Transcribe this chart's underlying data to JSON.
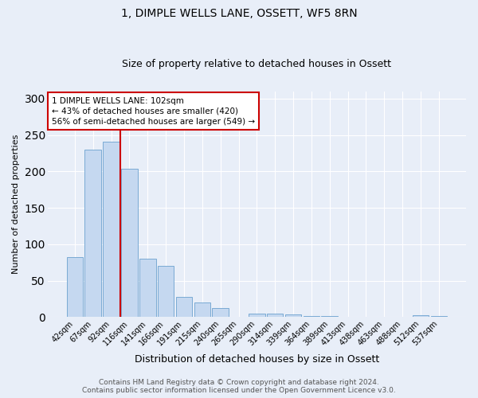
{
  "title1": "1, DIMPLE WELLS LANE, OSSETT, WF5 8RN",
  "title2": "Size of property relative to detached houses in Ossett",
  "xlabel": "Distribution of detached houses by size in Ossett",
  "ylabel": "Number of detached properties",
  "categories": [
    "42sqm",
    "67sqm",
    "92sqm",
    "116sqm",
    "141sqm",
    "166sqm",
    "191sqm",
    "215sqm",
    "240sqm",
    "265sqm",
    "290sqm",
    "314sqm",
    "339sqm",
    "364sqm",
    "389sqm",
    "413sqm",
    "438sqm",
    "463sqm",
    "488sqm",
    "512sqm",
    "537sqm"
  ],
  "values": [
    82,
    230,
    241,
    204,
    80,
    70,
    28,
    20,
    13,
    0,
    5,
    5,
    4,
    2,
    2,
    0,
    0,
    0,
    0,
    3,
    2
  ],
  "bar_color": "#c5d8f0",
  "bar_edge_color": "#7aaad4",
  "vline_x": 2.5,
  "vline_color": "#cc0000",
  "annotation_text": "1 DIMPLE WELLS LANE: 102sqm\n← 43% of detached houses are smaller (420)\n56% of semi-detached houses are larger (549) →",
  "annotation_box_facecolor": "#ffffff",
  "annotation_box_edgecolor": "#cc0000",
  "ylim": [
    0,
    310
  ],
  "yticks": [
    0,
    50,
    100,
    150,
    200,
    250,
    300
  ],
  "footer1": "Contains HM Land Registry data © Crown copyright and database right 2024.",
  "footer2": "Contains public sector information licensed under the Open Government Licence v3.0.",
  "bg_color": "#e8eef8",
  "plot_bg_color": "#e8eef8",
  "grid_color": "#ffffff",
  "title1_fontsize": 10,
  "title2_fontsize": 9,
  "xlabel_fontsize": 9,
  "ylabel_fontsize": 8,
  "tick_fontsize": 7,
  "annot_fontsize": 7.5,
  "footer_fontsize": 6.5
}
